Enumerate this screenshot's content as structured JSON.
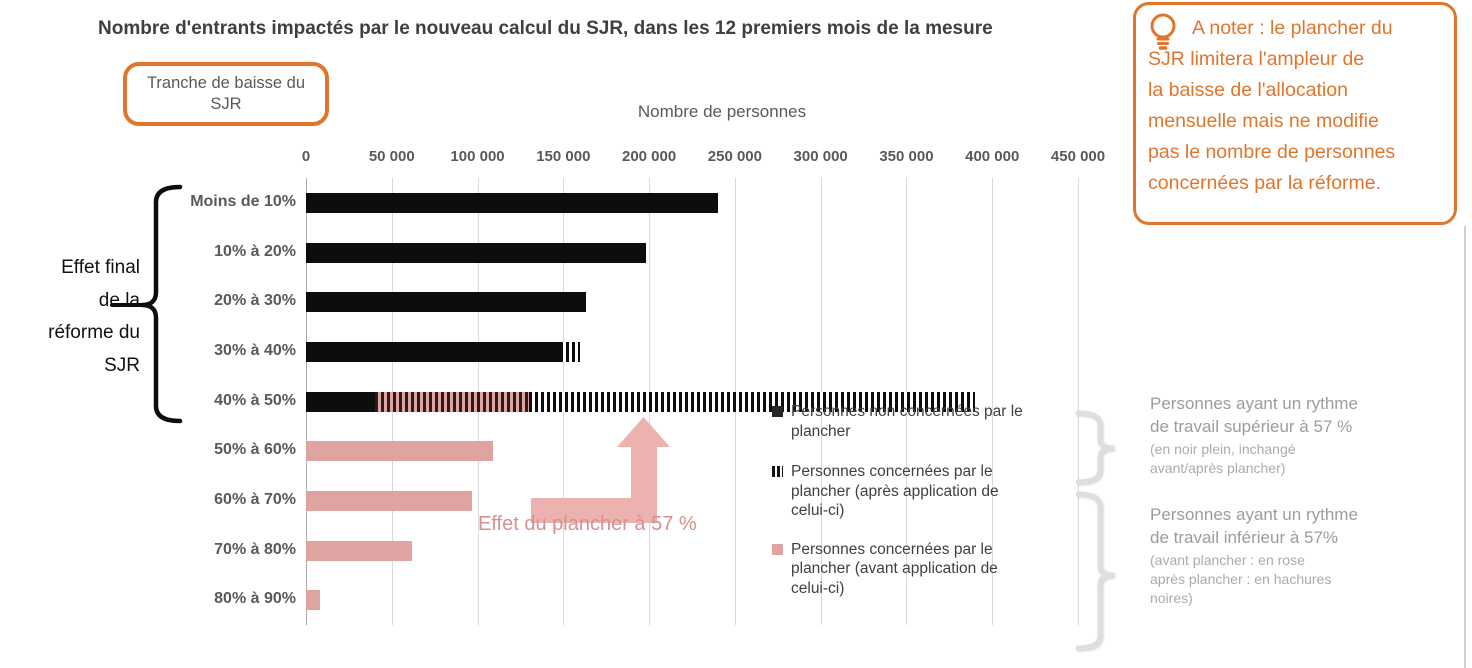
{
  "title": "Nombre d'entrants impactés par le nouveau calcul du SJR, dans les 12 premiers mois de la mesure",
  "ui": {
    "tranche_box_label": "Tranche de baisse du\nSJR",
    "left_annotation": "Effet final\nde la\nréforme du\nSJR",
    "arrow_label": "Effet du plancher à 57 %",
    "callout": {
      "icon": "lightbulb-icon",
      "text": "A noter : le plancher du\nSJR limitera l'ampleur de\nla baisse de l'allocation\nmensuelle mais ne modifie\npas le nombre de personnes\nconcernées par la réforme."
    },
    "legend": {
      "items": [
        {
          "swatch": "solid-black",
          "label": "Personnes non concernées par le\nplancher"
        },
        {
          "swatch": "hatch",
          "label": "Personnes concernées par le\nplancher (après application de\ncelui-ci)"
        },
        {
          "swatch": "rose",
          "label": "Personnes concernées par le\nplancher (avant application de\ncelui-ci)"
        }
      ]
    },
    "right_annotations": [
      {
        "main": "Personnes ayant un rythme\nde travail supérieur à 57 %",
        "sub": "(en noir plein, inchangé\navant/après plancher)"
      },
      {
        "main": "Personnes ayant un rythme\nde travail inférieur à 57%",
        "sub": "(avant plancher : en rose\naprès plancher : en hachures\nnoires)"
      }
    ]
  },
  "colors": {
    "orange_accent": "#e2752c",
    "rose_bar": "#dfa3a2",
    "rose_arrow": "#ebb2b0",
    "rose_text": "#d6908e",
    "black_bar": "#0d0d0d",
    "gridline": "#d9d9d9",
    "label_gray": "#595959",
    "annotation_gray": "#9c9c9c",
    "title_gray": "#3f3f3f"
  },
  "chart_data": {
    "type": "bar",
    "orientation": "horizontal",
    "title": "Nombre d'entrants impactés par le nouveau calcul du SJR, dans les 12 premiers mois de la mesure",
    "xlabel": "Nombre de personnes",
    "ylabel": "Tranche de baisse du SJR",
    "xlim": [
      0,
      450000
    ],
    "grid": true,
    "xticks": [
      0,
      50000,
      100000,
      150000,
      200000,
      250000,
      300000,
      350000,
      400000,
      450000
    ],
    "xtick_labels": [
      "0",
      "50 000",
      "100 000",
      "150 000",
      "200 000",
      "250 000",
      "300 000",
      "350 000",
      "400 000",
      "450 000"
    ],
    "categories": [
      "Moins de 10%",
      "10% à 20%",
      "20% à 30%",
      "30% à 40%",
      "40% à 50%",
      "50% à 60%",
      "60% à 70%",
      "70% à 80%",
      "80% à 90%"
    ],
    "rows": [
      {
        "label": "Moins de 10%",
        "segments": [
          {
            "kind": "black",
            "value": 240000
          }
        ]
      },
      {
        "label": "10% à 20%",
        "segments": [
          {
            "kind": "black",
            "value": 198000
          }
        ]
      },
      {
        "label": "20% à 30%",
        "segments": [
          {
            "kind": "black",
            "value": 163000
          }
        ]
      },
      {
        "label": "30% à 40%",
        "segments": [
          {
            "kind": "black",
            "value": 148000
          },
          {
            "kind": "hatch",
            "value": 12000
          }
        ]
      },
      {
        "label": "40% à 50%",
        "segments": [
          {
            "kind": "black",
            "value": 40000
          },
          {
            "kind": "rose-hatch",
            "value": 90000
          },
          {
            "kind": "hatch",
            "value": 260000
          }
        ]
      },
      {
        "label": "50% à 60%",
        "segments": [
          {
            "kind": "rose",
            "value": 109000
          }
        ]
      },
      {
        "label": "60% à 70%",
        "segments": [
          {
            "kind": "rose",
            "value": 97000
          }
        ]
      },
      {
        "label": "70% à 80%",
        "segments": [
          {
            "kind": "rose",
            "value": 62000
          }
        ]
      },
      {
        "label": "80% à 90%",
        "segments": [
          {
            "kind": "rose",
            "value": 8000
          }
        ]
      }
    ],
    "series": [
      {
        "name": "Personnes non concernées par le plancher",
        "style": "solid-black",
        "values": [
          240000,
          198000,
          163000,
          148000,
          40000,
          0,
          0,
          0,
          0
        ]
      },
      {
        "name": "Personnes concernées par le plancher (avant application de celui-ci)",
        "style": "solid-rose",
        "values": [
          0,
          0,
          0,
          0,
          90000,
          109000,
          97000,
          62000,
          8000
        ]
      },
      {
        "name": "Personnes concernées par le plancher (après application de celui-ci)",
        "style": "black-hatch",
        "values": [
          0,
          0,
          0,
          12000,
          350000,
          0,
          0,
          0,
          0
        ]
      }
    ],
    "legend_position": "center-right",
    "annotations": [
      "Effet du plancher à 57 %",
      "Effet final de la réforme du SJR"
    ]
  }
}
